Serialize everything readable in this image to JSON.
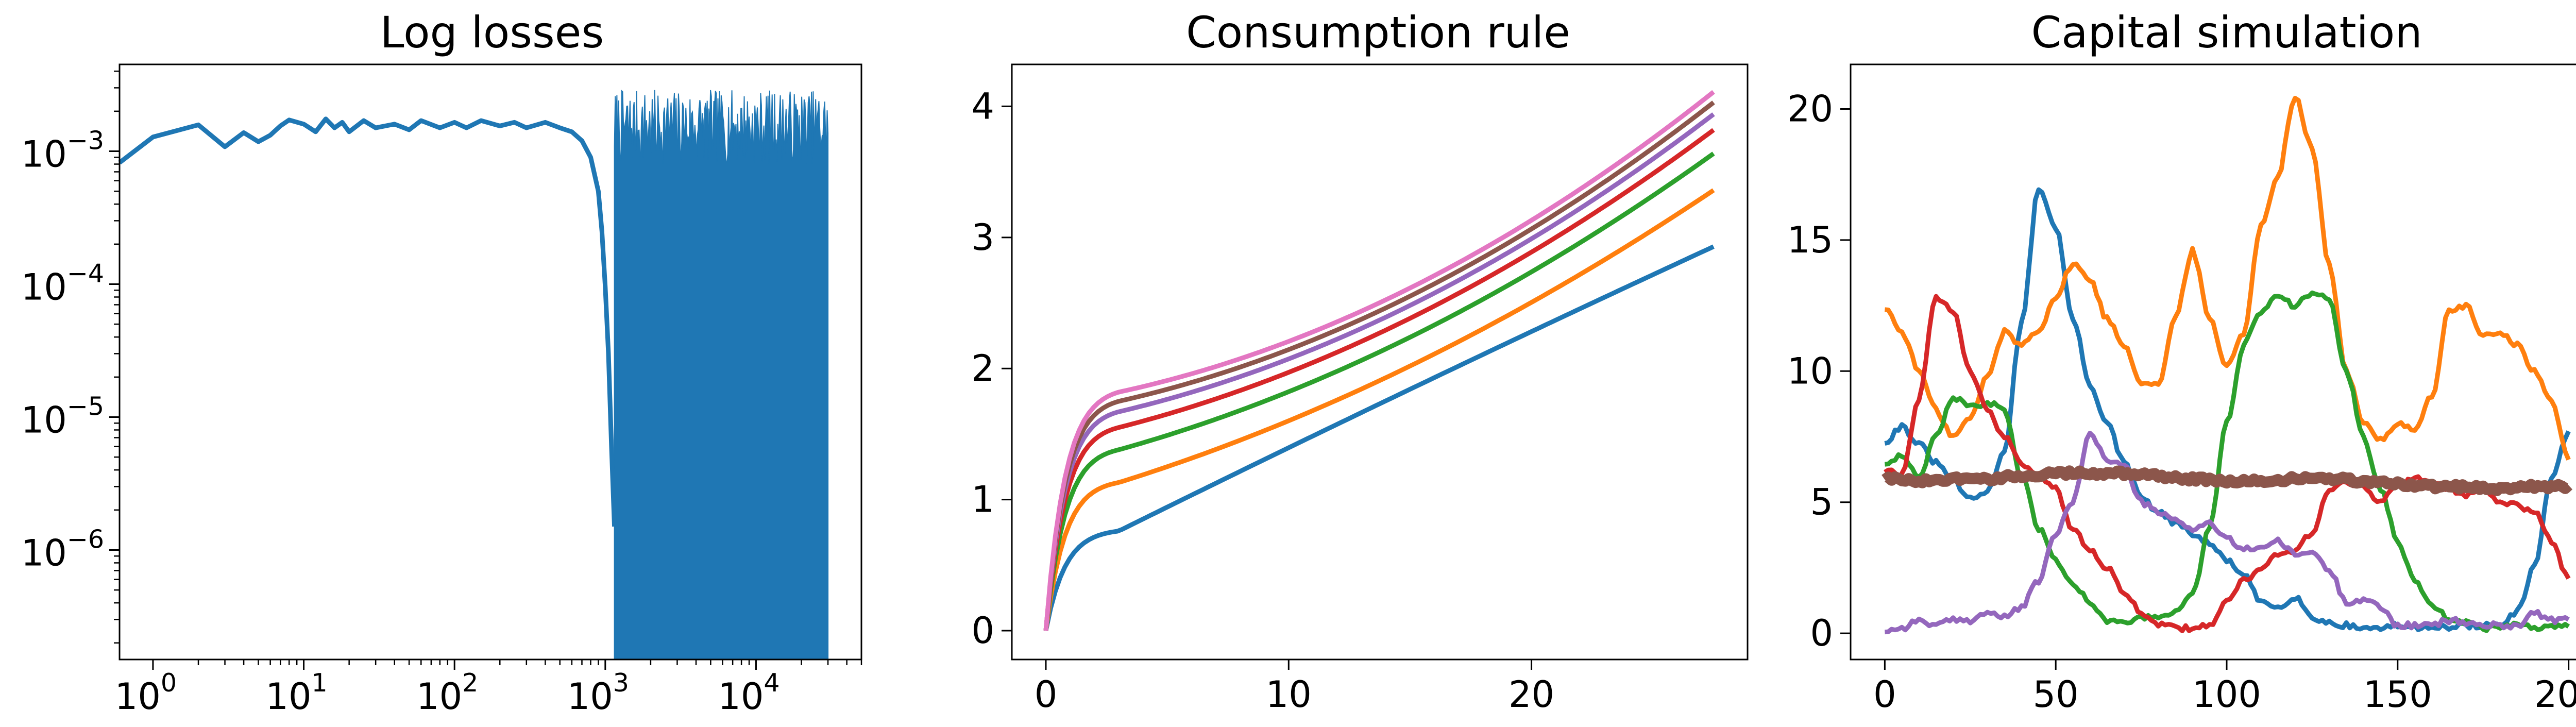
{
  "chart_data": [
    {
      "type": "area",
      "title": "Log losses",
      "xscale": "log",
      "yscale": "log",
      "xlim": [
        0.6,
        50000
      ],
      "ylim": [
        1.5e-07,
        0.0045
      ],
      "x_ticks": [
        {
          "value": 1,
          "base": "10",
          "exp": "0"
        },
        {
          "value": 10,
          "base": "10",
          "exp": "1"
        },
        {
          "value": 100,
          "base": "10",
          "exp": "2"
        },
        {
          "value": 1000,
          "base": "10",
          "exp": "3"
        },
        {
          "value": 10000,
          "base": "10",
          "exp": "4"
        }
      ],
      "y_ticks": [
        {
          "value": 0.001,
          "base": "10",
          "exp": "−3"
        },
        {
          "value": 0.0001,
          "base": "10",
          "exp": "−4"
        },
        {
          "value": 1e-05,
          "base": "10",
          "exp": "−5"
        },
        {
          "value": 1e-06,
          "base": "10",
          "exp": "−6"
        }
      ],
      "color": "#1f77b4",
      "series": [
        {
          "x": [
            0.6,
            1,
            2,
            3,
            4,
            5,
            6,
            7,
            8,
            10,
            12,
            14,
            16,
            18,
            20,
            25,
            30,
            40,
            50,
            60,
            80,
            100,
            120,
            150,
            200,
            250,
            300,
            400,
            500,
            600,
            700,
            800,
            900,
            950,
            1000,
            1050,
            1100,
            1150
          ],
          "y": [
            0.00082,
            0.00128,
            0.00158,
            0.00108,
            0.00138,
            0.00118,
            0.00132,
            0.00155,
            0.00172,
            0.0016,
            0.0014,
            0.00175,
            0.0015,
            0.00165,
            0.0014,
            0.0017,
            0.0015,
            0.0016,
            0.00145,
            0.0017,
            0.0015,
            0.00165,
            0.0015,
            0.0017,
            0.00155,
            0.00165,
            0.0015,
            0.00165,
            0.0015,
            0.0014,
            0.0012,
            0.0009,
            0.0005,
            0.00025,
            9.5e-05,
            3e-05,
            6e-06,
            1.5e-06
          ]
        }
      ],
      "noise_band": {
        "x_start": 1150,
        "x_end": 30000,
        "y_low": 1.5e-07,
        "y_high_min": 0.0008,
        "y_high_max": 0.0029
      }
    },
    {
      "type": "line",
      "title": "Consumption rule",
      "xlim": [
        -1.4,
        28.9
      ],
      "ylim": [
        -0.22,
        4.32
      ],
      "x_ticks": [
        0,
        10,
        20
      ],
      "y_ticks": [
        0,
        1,
        2,
        3,
        4
      ],
      "series": [
        {
          "color": "#1f77b4",
          "plateau": 0.76,
          "end": 2.93
        },
        {
          "color": "#ff7f0e",
          "plateau": 1.13,
          "end": 3.36
        },
        {
          "color": "#2ca02c",
          "plateau": 1.38,
          "end": 3.64
        },
        {
          "color": "#d62728",
          "plateau": 1.55,
          "end": 3.82
        },
        {
          "color": "#9467bd",
          "plateau": 1.67,
          "end": 3.94
        },
        {
          "color": "#8c564b",
          "plateau": 1.75,
          "end": 4.03
        },
        {
          "color": "#e377c2",
          "plateau": 1.82,
          "end": 4.11
        }
      ],
      "x_end": 27.5
    },
    {
      "type": "line",
      "title": "Capital simulation",
      "xlim": [
        -10,
        210
      ],
      "ylim": [
        -1.0,
        21.7
      ],
      "x_ticks": [
        0,
        50,
        100,
        150,
        200
      ],
      "y_ticks": [
        0,
        5,
        10,
        15,
        20
      ],
      "series": [
        {
          "color": "#1f77b4",
          "x": [
            0,
            5,
            10,
            15,
            20,
            25,
            30,
            35,
            40,
            45,
            50,
            55,
            60,
            65,
            70,
            75,
            80,
            85,
            90,
            95,
            100,
            105,
            110,
            115,
            120,
            125,
            130,
            135,
            140,
            145,
            150,
            155,
            160,
            165,
            170,
            175,
            180,
            185,
            190,
            195,
            200
          ],
          "y": [
            7.3,
            7.9,
            7.2,
            6.5,
            5.8,
            5.1,
            5.4,
            7.0,
            11.8,
            17.0,
            15.5,
            12.0,
            9.5,
            8.0,
            6.5,
            5.2,
            4.6,
            4.2,
            3.8,
            3.4,
            2.8,
            2.2,
            1.2,
            1.0,
            1.4,
            0.6,
            0.4,
            0.3,
            0.2,
            0.2,
            0.3,
            0.2,
            0.3,
            0.2,
            0.3,
            0.3,
            0.3,
            0.8,
            2.5,
            6.0,
            7.6
          ]
        },
        {
          "color": "#ff7f0e",
          "x": [
            0,
            5,
            10,
            15,
            20,
            25,
            30,
            35,
            40,
            45,
            50,
            55,
            60,
            65,
            70,
            75,
            80,
            85,
            90,
            95,
            100,
            105,
            110,
            115,
            120,
            125,
            130,
            135,
            140,
            145,
            150,
            155,
            160,
            165,
            170,
            175,
            180,
            185,
            190,
            195,
            200
          ],
          "y": [
            12.4,
            11.5,
            10.0,
            8.5,
            7.5,
            8.2,
            9.8,
            11.5,
            11.0,
            11.6,
            12.8,
            14.1,
            13.5,
            12.0,
            11.0,
            9.6,
            9.5,
            12.0,
            14.6,
            12.0,
            10.2,
            11.5,
            15.5,
            17.5,
            20.5,
            18.5,
            14.0,
            10.0,
            8.0,
            7.4,
            8.0,
            7.8,
            9.0,
            12.3,
            12.5,
            11.3,
            11.5,
            11.0,
            10.0,
            8.8,
            6.7
          ]
        },
        {
          "color": "#2ca02c",
          "x": [
            0,
            5,
            10,
            15,
            20,
            25,
            30,
            35,
            40,
            45,
            50,
            55,
            60,
            65,
            70,
            75,
            80,
            85,
            90,
            95,
            100,
            105,
            110,
            115,
            120,
            125,
            130,
            135,
            140,
            145,
            150,
            155,
            160,
            165,
            170,
            175,
            180,
            185,
            190,
            195,
            200
          ],
          "y": [
            6.5,
            6.8,
            6.0,
            7.5,
            9.0,
            8.6,
            8.8,
            8.5,
            6.0,
            4.0,
            2.8,
            1.9,
            1.2,
            0.5,
            0.4,
            0.6,
            0.6,
            0.8,
            1.5,
            4.0,
            8.0,
            11.0,
            12.3,
            12.8,
            12.5,
            13.0,
            12.8,
            10.0,
            7.5,
            5.5,
            3.5,
            2.0,
            1.0,
            0.6,
            0.4,
            0.2,
            0.2,
            0.3,
            0.2,
            0.3,
            0.3
          ]
        },
        {
          "color": "#d62728",
          "x": [
            0,
            5,
            10,
            15,
            20,
            25,
            30,
            35,
            40,
            45,
            50,
            55,
            60,
            65,
            70,
            75,
            80,
            85,
            90,
            95,
            100,
            105,
            110,
            115,
            120,
            125,
            130,
            135,
            140,
            145,
            150,
            155,
            160,
            165,
            170,
            175,
            180,
            185,
            190,
            195,
            200
          ],
          "y": [
            6.2,
            6.0,
            9.0,
            12.8,
            12.3,
            10.0,
            8.5,
            7.5,
            6.5,
            6.0,
            5.5,
            4.0,
            3.2,
            2.5,
            1.6,
            0.8,
            0.3,
            0.2,
            0.2,
            0.3,
            1.3,
            2.0,
            2.5,
            3.0,
            3.2,
            3.8,
            5.5,
            5.8,
            5.6,
            5.0,
            5.6,
            5.9,
            5.7,
            5.5,
            5.3,
            5.6,
            5.0,
            4.9,
            4.6,
            3.5,
            2.1
          ]
        },
        {
          "color": "#9467bd",
          "x": [
            0,
            5,
            10,
            15,
            20,
            25,
            30,
            35,
            40,
            45,
            50,
            55,
            60,
            65,
            70,
            75,
            80,
            85,
            90,
            95,
            100,
            105,
            110,
            115,
            120,
            125,
            130,
            135,
            140,
            145,
            150,
            155,
            160,
            165,
            170,
            175,
            180,
            185,
            190,
            195,
            200
          ],
          "y": [
            0.1,
            0.2,
            0.5,
            0.3,
            0.5,
            0.5,
            0.8,
            0.6,
            1.0,
            2.0,
            3.8,
            5.0,
            7.7,
            6.6,
            6.4,
            5.0,
            4.6,
            4.3,
            4.0,
            4.2,
            3.6,
            3.2,
            3.3,
            3.5,
            3.0,
            3.1,
            2.4,
            1.2,
            1.3,
            1.0,
            0.3,
            0.3,
            0.3,
            0.5,
            0.4,
            0.3,
            0.3,
            0.3,
            0.8,
            0.5,
            0.5
          ]
        },
        {
          "color": "#8c564b",
          "x": [
            0,
            10,
            20,
            30,
            40,
            50,
            60,
            70,
            80,
            90,
            100,
            110,
            120,
            130,
            140,
            150,
            160,
            170,
            180,
            190,
            200
          ],
          "y": [
            5.9,
            5.8,
            5.9,
            5.9,
            6.0,
            6.1,
            6.1,
            6.1,
            6.0,
            5.9,
            5.8,
            5.8,
            5.9,
            5.9,
            5.8,
            5.7,
            5.6,
            5.6,
            5.5,
            5.6,
            5.6
          ]
        }
      ]
    }
  ]
}
